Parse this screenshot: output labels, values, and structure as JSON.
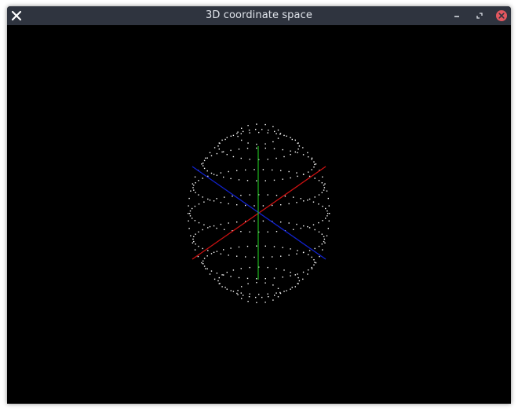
{
  "window": {
    "title": "3D coordinate space"
  },
  "titlebar": {
    "left_icon": "close-icon",
    "buttons": [
      {
        "name": "minimize-icon"
      },
      {
        "name": "maximize-icon"
      },
      {
        "name": "close-icon"
      }
    ]
  },
  "scene": {
    "background": "#000000",
    "point_color": "#ffffff",
    "axes": [
      {
        "name": "x-axis",
        "color": "#cc1111"
      },
      {
        "name": "y-axis",
        "color": "#22cc22"
      },
      {
        "name": "z-axis",
        "color": "#1122cc"
      }
    ]
  },
  "colors": {
    "titlebar_bg": "#2f343f",
    "titlebar_text": "#dfe3ea",
    "close_accent": "#e2575f"
  }
}
